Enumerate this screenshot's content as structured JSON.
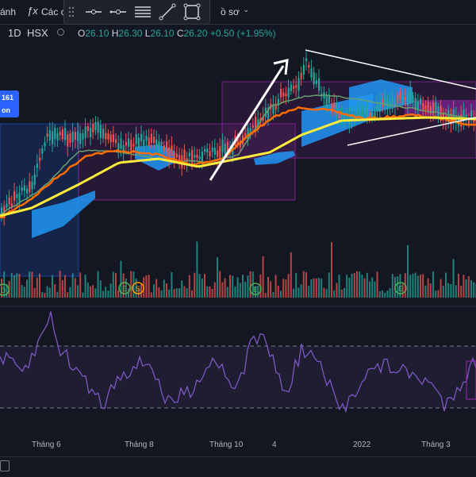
{
  "toolbar": {
    "left_fragment": "ánh",
    "formula_label": "Các c",
    "right_fragment": "ồ sơ",
    "tools": [
      "drag-handle",
      "horizontal-line",
      "horizontal-ray",
      "parallel-lines",
      "trend-line",
      "rectangle"
    ]
  },
  "legend": {
    "interval": "1D",
    "exchange": "HSX",
    "open_label": "O",
    "open_value": "26.10",
    "high_label": "H",
    "high_value": "26.30",
    "low_label": "L",
    "low_value": "26.10",
    "close_label": "C",
    "close_value": "26.20",
    "change": "+0.50 (+1.95%)"
  },
  "badge": {
    "line1": "161",
    "line2": "on"
  },
  "markers": [
    {
      "label": "D"
    },
    {
      "label": "E"
    },
    {
      "label": "S"
    },
    {
      "label": "E"
    },
    {
      "label": "E"
    }
  ],
  "xaxis": [
    "Tháng 6",
    "Tháng 8",
    "Tháng 10",
    "4",
    "2022",
    "Tháng 3"
  ],
  "colors": {
    "background": "#131722",
    "up": "#26a69a",
    "down": "#ef5350",
    "ma_orange": "#ff6d00",
    "ma_yellow": "#ffeb3b",
    "cloud": "#2196f3",
    "rsi": "#7e57c2",
    "box_purple": "#9c27b0",
    "box_blue": "#2962ff"
  }
}
